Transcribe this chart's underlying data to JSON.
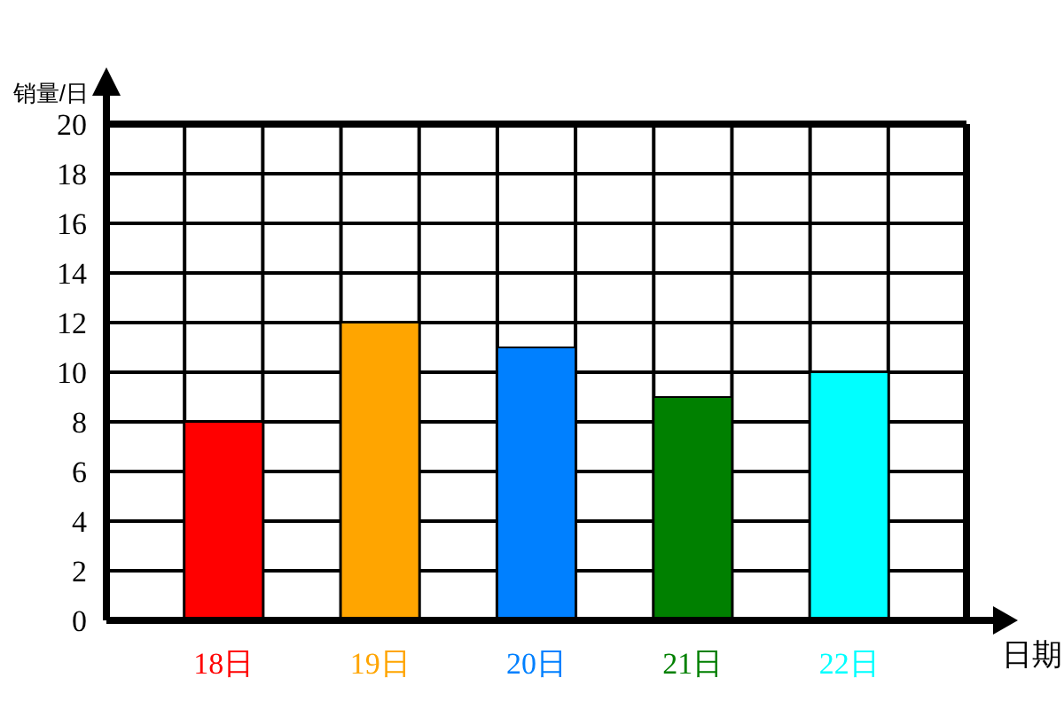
{
  "chart_data": {
    "type": "bar",
    "xlabel": "日期",
    "ylabel": "销量/日",
    "categories": [
      "18日",
      "19日",
      "20日",
      "21日",
      "22日"
    ],
    "values": [
      8,
      12,
      11,
      9,
      10
    ],
    "colors": [
      "#ff0000",
      "#ffa500",
      "#0080ff",
      "#008000",
      "#00ffff"
    ],
    "ylim": [
      0,
      20
    ],
    "yticks": [
      0,
      2,
      4,
      6,
      8,
      10,
      12,
      14,
      16,
      18,
      20
    ],
    "grid": true
  }
}
